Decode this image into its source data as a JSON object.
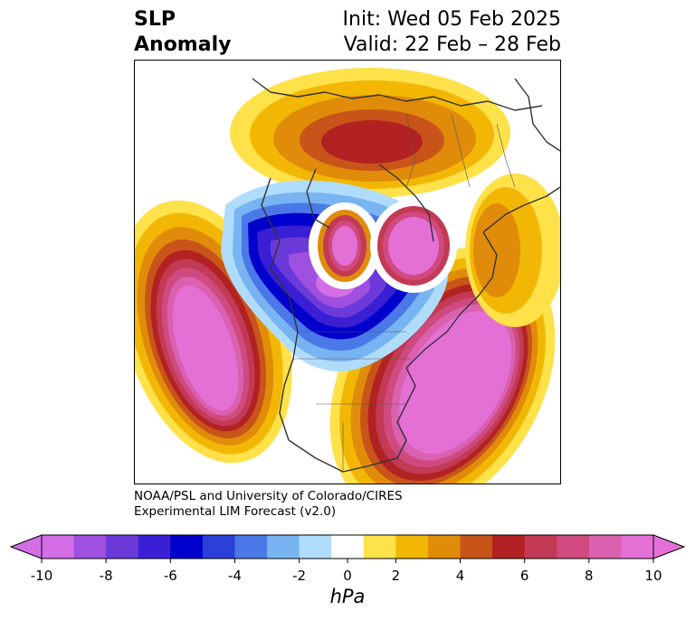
{
  "header": {
    "title_line1": "SLP",
    "title_line2": "Anomaly",
    "init": "Init: Wed 05 Feb 2025",
    "valid": "Valid: 22 Feb – 28 Feb"
  },
  "credit": {
    "line1": "NOAA/PSL and University of Colorado/CIRES",
    "line2": "Experimental LIM Forecast (v2.0)"
  },
  "colorbar": {
    "unit": "hPa",
    "ticks": [
      "-10",
      "-8",
      "-6",
      "-4",
      "-2",
      "0",
      "2",
      "4",
      "6",
      "8",
      "10"
    ],
    "levels": [
      -10,
      -9,
      -8,
      -7,
      -6,
      -5,
      -4,
      -3,
      -2,
      -1,
      1,
      2,
      3,
      4,
      5,
      6,
      7,
      8,
      9,
      10
    ],
    "colors": [
      "#d36ee6",
      "#a050e0",
      "#6b3ad9",
      "#3a1fd4",
      "#0000cc",
      "#2a40d8",
      "#4a78e8",
      "#78b4f2",
      "#b0dcfb",
      "#ffffff",
      "#ffe14a",
      "#f2b705",
      "#e08c0a",
      "#c8541a",
      "#b22222",
      "#c23a55",
      "#d04a80",
      "#da60b0",
      "#e470d6"
    ]
  }
}
